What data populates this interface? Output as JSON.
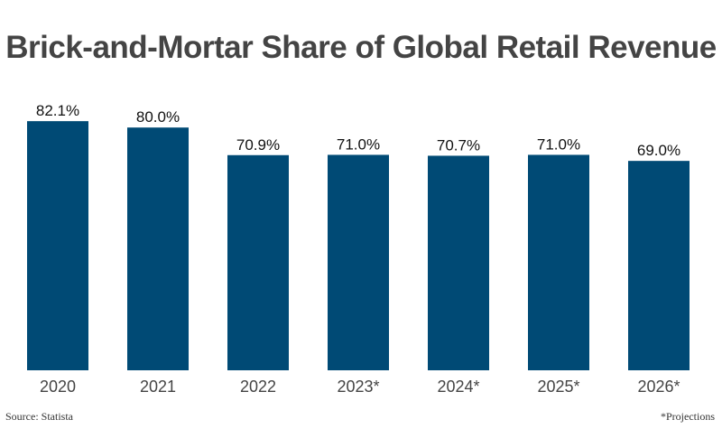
{
  "chart_data": {
    "type": "bar",
    "title": "Brick-and-Mortar Share of Global Retail Revenue",
    "categories": [
      "2020",
      "2021",
      "2022",
      "2023*",
      "2024*",
      "2025*",
      "2026*"
    ],
    "values": [
      82.1,
      80.0,
      70.9,
      71.0,
      70.7,
      71.0,
      69.0
    ],
    "data_labels": [
      "82.1%",
      "80.0%",
      "70.9%",
      "71.0%",
      "70.7%",
      "71.0%",
      "69.0%"
    ],
    "xlabel": "",
    "ylabel": "",
    "ylim": [
      0,
      100
    ],
    "grid": false,
    "bar_color": "#004a75",
    "source": "Source: Statista",
    "footnote": "*Projections"
  }
}
